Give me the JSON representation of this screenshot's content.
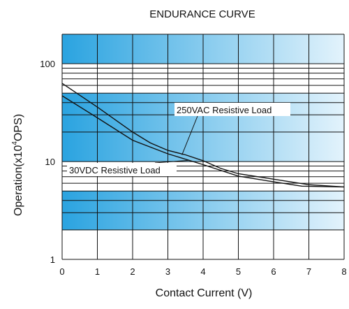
{
  "chart_data": {
    "type": "line",
    "title": "ENDURANCE CURVE",
    "xlabel": "Contact Current (V)",
    "ylabel_pre": "Operation(x10",
    "ylabel_sup": "4",
    "ylabel_post": "OPS)",
    "xlim": [
      0,
      8
    ],
    "ylim": [
      1,
      200
    ],
    "y_scale": "log",
    "x_ticks": [
      "0",
      "1",
      "2",
      "3",
      "4",
      "5",
      "6",
      "7",
      "8"
    ],
    "y_ticks": [
      {
        "value": 100,
        "label": "100"
      },
      {
        "value": 10,
        "label": "10"
      },
      {
        "value": 1,
        "label": "1"
      }
    ],
    "grid": true,
    "series": [
      {
        "name": "250VAC Resistive Load",
        "x": [
          0,
          1,
          2,
          2.5,
          3,
          3.5,
          4,
          4.5,
          5,
          6,
          7,
          8
        ],
        "y": [
          63,
          36,
          20,
          15.5,
          13,
          11.7,
          10.2,
          8.5,
          7.5,
          6.6,
          5.8,
          5.5
        ]
      },
      {
        "name": "30VDC Resistive Load",
        "x": [
          0,
          1,
          2,
          3,
          4,
          5,
          6,
          6.8,
          8
        ],
        "y": [
          47,
          28,
          16.5,
          12,
          9.3,
          7.1,
          6.2,
          5.6,
          5.5
        ]
      }
    ],
    "annotations": [
      {
        "text": "250VAC Resistive Load",
        "series": 0,
        "x": 3.4,
        "y": 11.7
      },
      {
        "text": "30VDC Resistive Load",
        "series": 1,
        "x": 3.6,
        "y": 10.3
      }
    ],
    "colors": {
      "band_dark": "#2aa3e0",
      "band_light": "#e3f3fc",
      "band_white": "#ffffff",
      "grid": "#111111",
      "line": "#111111"
    }
  }
}
